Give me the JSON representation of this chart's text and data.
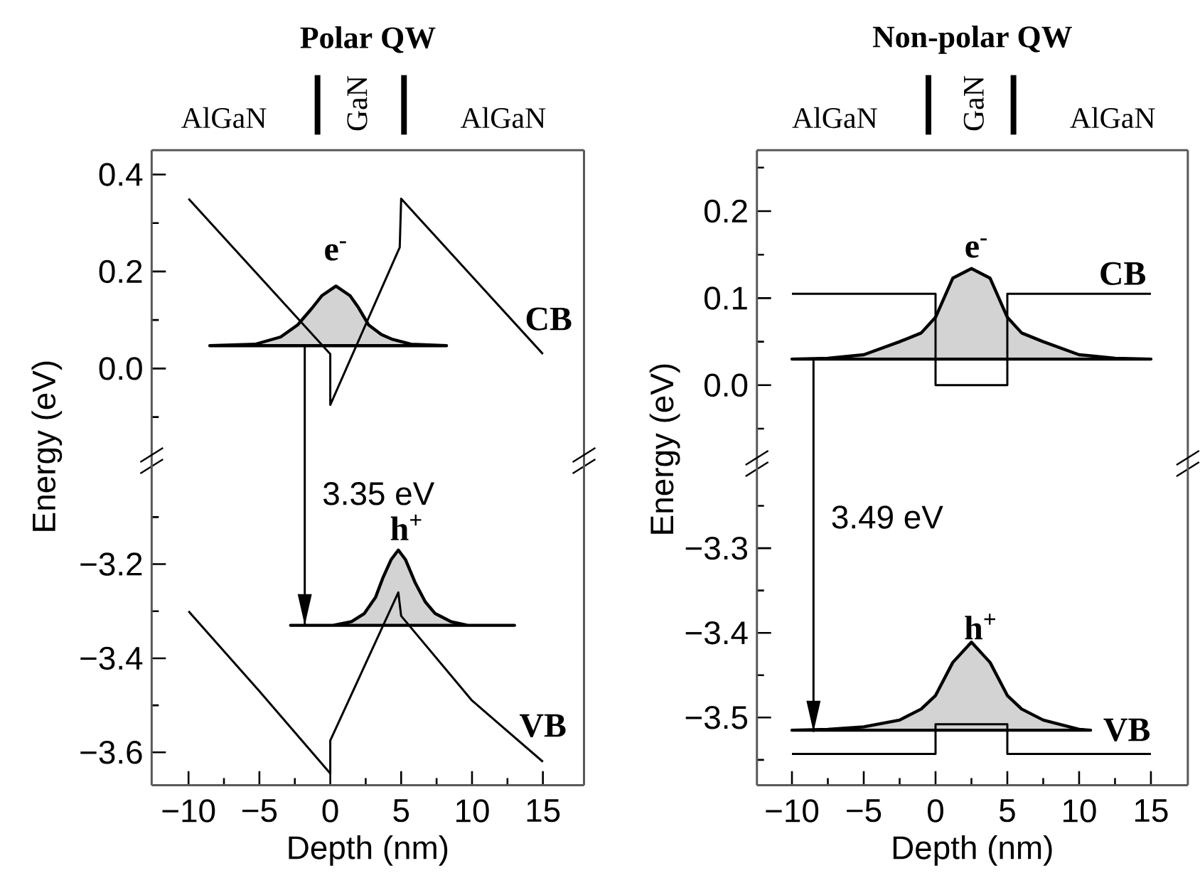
{
  "chart_data": [
    {
      "type": "line",
      "title": "Polar QW",
      "ylabel": "Energy (eV)",
      "xlim": [
        -12.6,
        17.9
      ],
      "ylim": [
        -0.19,
        0.45
      ],
      "tick_labels": "y",
      "yticks": [
        {
          "value": 0.4,
          "label": "0.4"
        },
        {
          "value": 0.2,
          "label": "0.2"
        },
        {
          "value": 0,
          "label": "0.0"
        },
        {
          "value": 0.3,
          "label": null
        },
        {
          "value": 0.1,
          "label": null
        },
        {
          "value": -0.1,
          "label": null
        }
      ],
      "annotations": [
        "AlGaN",
        "GaN",
        "AlGaN",
        "e$^{-}$",
        "CB"
      ],
      "series": [
        {
          "type": "area",
          "color": "#d3d3d3",
          "x": [
            -8.5,
            -5.3,
            -3.5,
            -2.3,
            -1.3,
            -0.6,
            0.4,
            1.4,
            2.0,
            2.7,
            3.6,
            4.4,
            5.7,
            8.2
          ],
          "values": [
            0.047,
            0.05,
            0.065,
            0.09,
            0.124,
            0.15,
            0.17,
            0.15,
            0.125,
            0.09,
            0.07,
            0.06,
            0.05,
            0.047
          ]
        },
        {
          "color": "#000000",
          "x": [
            -10,
            -5,
            0,
            0,
            4.9,
            5,
            10,
            15
          ],
          "values": [
            0.35,
            0.19,
            0.03,
            -0.075,
            0.25,
            0.35,
            0.19,
            0.03
          ]
        },
        {
          "color": "#000000",
          "x": [
            -1.8,
            -1.8
          ],
          "values": [
            0.047,
            -0.19
          ]
        }
      ]
    },
    {
      "type": "line",
      "xlabel": "Depth (nm)",
      "xlim": [
        -12.6,
        17.9
      ],
      "ylim": [
        -3.67,
        -2.98
      ],
      "xticks": [
        {
          "value": -10,
          "label": "−10"
        },
        {
          "value": -5,
          "label": "−5"
        },
        0,
        5,
        10,
        15,
        {
          "value": -7.5,
          "label": null
        },
        {
          "value": -2.5,
          "label": null
        },
        {
          "value": 2.5,
          "label": null
        },
        {
          "value": 7.5,
          "label": null
        },
        {
          "value": 12.5,
          "label": null
        }
      ],
      "yticks": [
        {
          "value": -3.2,
          "label": "−3.2"
        },
        {
          "value": -3.4,
          "label": "−3.4"
        },
        {
          "value": -3.6,
          "label": "−3.6"
        },
        {
          "value": -3.1,
          "label": null
        },
        {
          "value": -3.3,
          "label": null
        },
        {
          "value": -3.5,
          "label": null
        }
      ],
      "annotations": [
        "h$^{+}$",
        "VB"
      ],
      "series": [
        {
          "type": "area",
          "color": "#d3d3d3",
          "x": [
            -2.8,
            0.2,
            1.5,
            2.4,
            3.2,
            3.7,
            4.3,
            4.8,
            5.3,
            6.0,
            6.7,
            7.4,
            8.5,
            9.7,
            13
          ],
          "values": [
            -3.33,
            -3.33,
            -3.322,
            -3.305,
            -3.27,
            -3.23,
            -3.19,
            -3.17,
            -3.19,
            -3.24,
            -3.28,
            -3.305,
            -3.322,
            -3.33,
            -3.33
          ]
        },
        {
          "color": "#000000",
          "x": [
            -10,
            -5,
            0,
            0,
            4.8,
            5,
            10,
            15
          ],
          "values": [
            -3.3,
            -3.47,
            -3.645,
            -3.575,
            -3.26,
            -3.31,
            -3.49,
            -3.62
          ]
        },
        {
          "name": "3.35 eV",
          "color": "#000000",
          "x": [
            -1.8,
            -1.8
          ],
          "values": [
            -2.98,
            -3.33
          ]
        }
      ]
    },
    {
      "type": "line",
      "title": "Non-polar QW",
      "ylabel": "Energy (eV)",
      "xlim": [
        -12.44,
        17.57
      ],
      "ylim": [
        -0.09,
        0.27
      ],
      "tick_labels": "y",
      "yticks": [
        {
          "value": 0.2,
          "label": "0.2"
        },
        {
          "value": 0.1,
          "label": "0.1"
        },
        {
          "value": 0,
          "label": "0.0"
        },
        {
          "value": 0.25,
          "label": null
        },
        {
          "value": 0.15,
          "label": null
        },
        {
          "value": 0.05,
          "label": null
        },
        {
          "value": -0.05,
          "label": null
        }
      ],
      "annotations": [
        "AlGaN",
        "GaN",
        "AlGaN",
        "e$^{-}$",
        "CB"
      ],
      "series": [
        {
          "type": "area",
          "color": "#d3d3d3",
          "x": [
            -10,
            -7.5,
            -5,
            -2.5,
            -1,
            0,
            1.2,
            2.5,
            3.8,
            5,
            6,
            7.5,
            10,
            12.5,
            15
          ],
          "values": [
            0.03,
            0.031,
            0.035,
            0.05,
            0.06,
            0.078,
            0.123,
            0.134,
            0.123,
            0.078,
            0.06,
            0.05,
            0.035,
            0.031,
            0.03
          ]
        },
        {
          "color": "#000000",
          "x": [
            -10,
            0,
            0,
            5,
            5,
            15
          ],
          "values": [
            0.105,
            0.105,
            0,
            0,
            0.105,
            0.105
          ]
        },
        {
          "color": "#000000",
          "x": [
            -8.5,
            -8.5
          ],
          "values": [
            0.03,
            -0.09
          ]
        }
      ]
    },
    {
      "type": "line",
      "xlabel": "Depth (nm)",
      "xlim": [
        -12.44,
        17.57
      ],
      "ylim": [
        -3.58,
        -3.2
      ],
      "xticks": [
        {
          "value": -10,
          "label": "−10"
        },
        {
          "value": -5,
          "label": "−5"
        },
        0,
        5,
        10,
        15,
        {
          "value": -7.5,
          "label": null
        },
        {
          "value": -2.5,
          "label": null
        },
        {
          "value": 2.5,
          "label": null
        },
        {
          "value": 7.5,
          "label": null
        },
        {
          "value": 12.5,
          "label": null
        }
      ],
      "yticks": [
        {
          "value": -3.3,
          "label": "−3.3"
        },
        {
          "value": -3.4,
          "label": "−3.4"
        },
        {
          "value": -3.5,
          "label": "−3.5"
        },
        {
          "value": -3.25,
          "label": null
        },
        {
          "value": -3.35,
          "label": null
        },
        {
          "value": -3.45,
          "label": null
        },
        {
          "value": -3.55,
          "label": null
        }
      ],
      "annotations": [
        "h$^{+}$",
        "VB"
      ],
      "series": [
        {
          "type": "area",
          "color": "#d3d3d3",
          "x": [
            -10,
            -7.5,
            -5,
            -2.5,
            -1,
            0,
            1.2,
            2.5,
            3.8,
            5,
            6,
            7.5,
            10,
            10.8
          ],
          "values": [
            -3.515,
            -3.514,
            -3.511,
            -3.503,
            -3.49,
            -3.474,
            -3.435,
            -3.411,
            -3.435,
            -3.474,
            -3.49,
            -3.503,
            -3.514,
            -3.515
          ]
        },
        {
          "color": "#000000",
          "x": [
            -10,
            0,
            0,
            5,
            5,
            15
          ],
          "values": [
            -3.543,
            -3.543,
            -3.508,
            -3.508,
            -3.543,
            -3.543
          ]
        },
        {
          "name": "3.49 eV",
          "color": "#000000",
          "x": [
            -8.5,
            -8.5
          ],
          "values": [
            -3.2,
            -3.517
          ]
        }
      ]
    }
  ]
}
